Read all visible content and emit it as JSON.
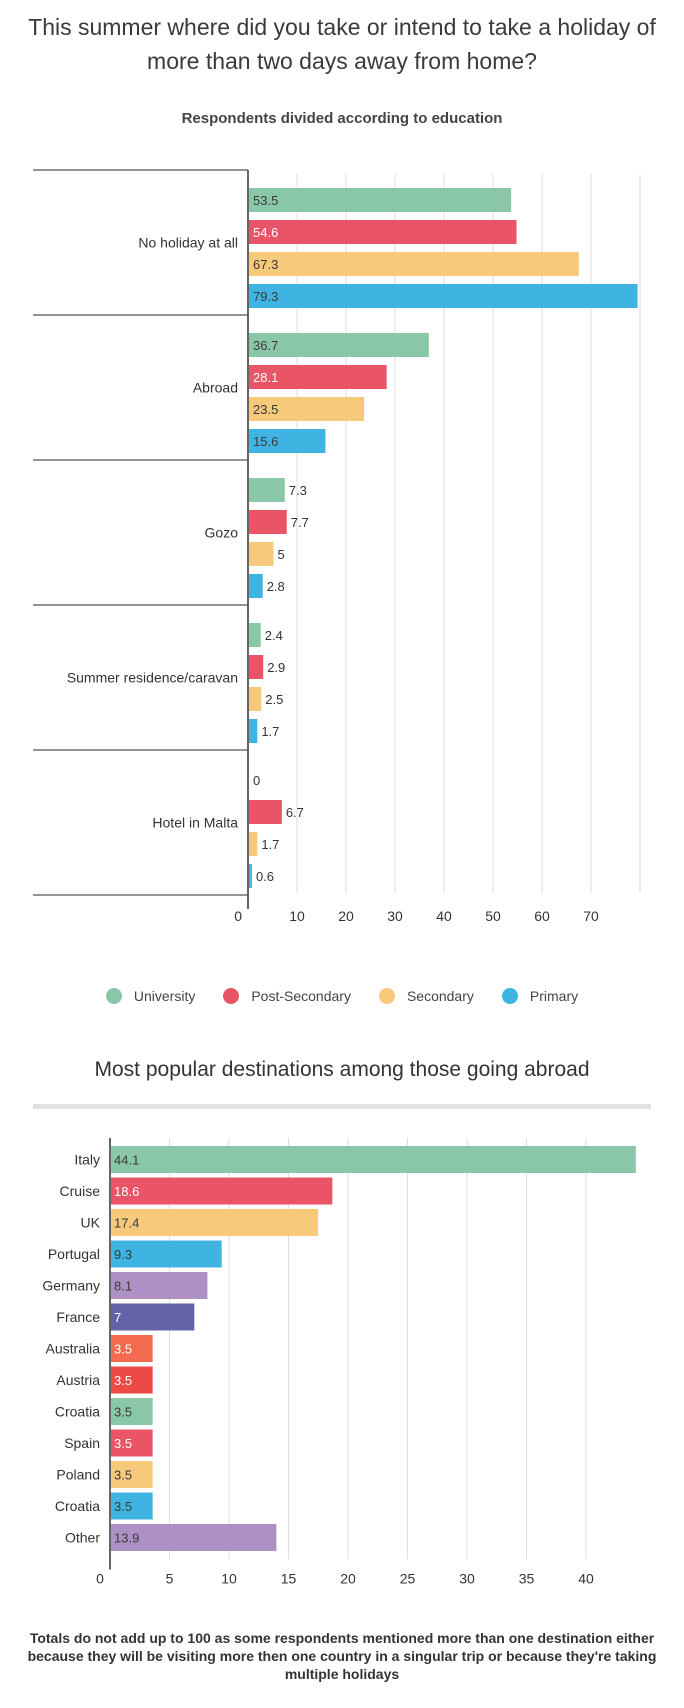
{
  "title": "This summer where did you take or intend to take a holiday of more than two days away from home?",
  "chart_data": [
    {
      "type": "bar",
      "orientation": "horizontal",
      "subtitle": "Respondents divided according to education",
      "categories": [
        "No holiday at all",
        "Abroad",
        "Gozo",
        "Summer residence/caravan",
        "Hotel in Malta"
      ],
      "series": [
        {
          "name": "University",
          "color": "#8ac7a8",
          "values": [
            53.5,
            36.7,
            7.3,
            2.4,
            0
          ]
        },
        {
          "name": "Post-Secondary",
          "color": "#ea5467",
          "values": [
            54.6,
            28.1,
            7.7,
            2.9,
            6.7
          ]
        },
        {
          "name": "Secondary",
          "color": "#f6c97b",
          "values": [
            67.3,
            23.5,
            5,
            2.5,
            1.7
          ]
        },
        {
          "name": "Primary",
          "color": "#3fb4e3",
          "values": [
            79.3,
            15.6,
            2.8,
            1.7,
            0.6
          ]
        }
      ],
      "value_labels": [
        [
          "53.5",
          "36.7",
          "7.3",
          "2.4",
          "0"
        ],
        [
          "54.6",
          "28.1",
          "7.7",
          "2.9",
          "6.7"
        ],
        [
          "67.3",
          "23.5",
          "5",
          "2.5",
          "1.7"
        ],
        [
          "79.3",
          "15.6",
          "2.8",
          "1.7",
          "0.6"
        ]
      ],
      "xticks": [
        "0",
        "10",
        "20",
        "30",
        "40",
        "50",
        "60",
        "70"
      ],
      "xlim": [
        0,
        80
      ],
      "grid": true,
      "legend_position": "bottom"
    },
    {
      "type": "bar",
      "orientation": "horizontal",
      "title": "Most popular destinations among those going abroad",
      "categories": [
        "Italy",
        "Cruise",
        "UK",
        "Portugal",
        "Germany",
        "France",
        "Australia",
        "Austria",
        "Croatia",
        "Spain",
        "Poland",
        "Croatia",
        "Other"
      ],
      "values": [
        44.1,
        18.6,
        17.4,
        9.3,
        8.1,
        7,
        3.5,
        3.5,
        3.5,
        3.5,
        3.5,
        3.5,
        13.9
      ],
      "value_labels": [
        "44.1",
        "18.6",
        "17.4",
        "9.3",
        "8.1",
        "7",
        "3.5",
        "3.5",
        "3.5",
        "3.5",
        "3.5",
        "3.5",
        "13.9"
      ],
      "colors": [
        "#8ac7a8",
        "#ea5467",
        "#f6c97b",
        "#3fb4e3",
        "#ad91c4",
        "#6462a7",
        "#f26a4f",
        "#ee4a45",
        "#8ac7a8",
        "#ea5467",
        "#f6c97b",
        "#3fb4e3",
        "#ad91c4"
      ],
      "xticks": [
        "0",
        "5",
        "10",
        "15",
        "20",
        "25",
        "30",
        "35",
        "40"
      ],
      "xlim": [
        0,
        44.1
      ],
      "grid": true
    }
  ],
  "footnote": "Totals do not add up to 100 as some respondents mentioned more than one destination either because they will be visiting more then one country in a singular trip or because they're taking multiple holidays"
}
